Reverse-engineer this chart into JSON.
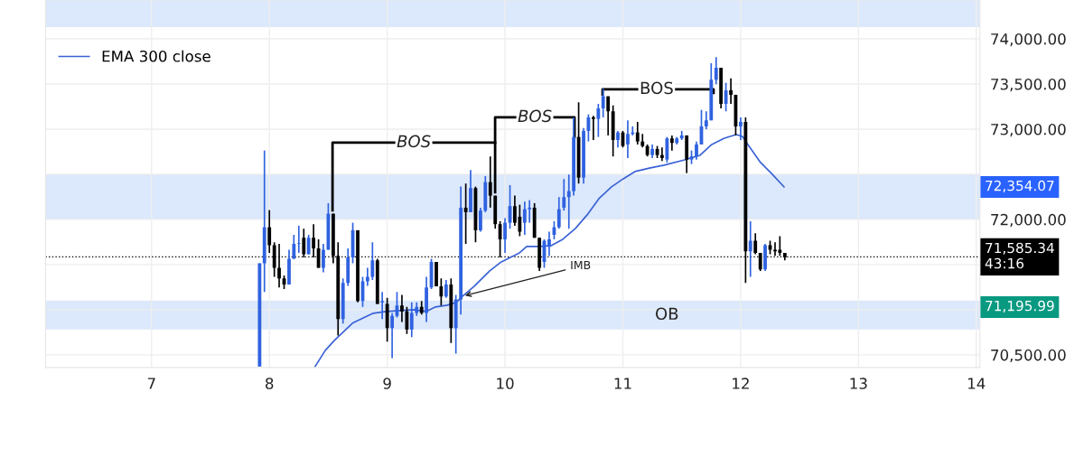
{
  "chart_data": {
    "type": "candlestick",
    "xlim": [
      6.1,
      14.031
    ],
    "xticks": [
      7,
      8,
      9,
      10,
      11,
      12,
      13,
      14
    ],
    "ylim": [
      70360,
      74430
    ],
    "yticks": [
      {
        "value": 70500,
        "label": "70,500.00"
      },
      {
        "value": 71000,
        "label": null
      },
      {
        "value": 71500,
        "label": null
      },
      {
        "value": 72000,
        "label": "72,000.00"
      },
      {
        "value": 72500,
        "label": null
      },
      {
        "value": 73000,
        "label": "73,000.00"
      },
      {
        "value": 73500,
        "label": "73,500.00"
      },
      {
        "value": 74000,
        "label": "74,000.00"
      }
    ],
    "grid": true,
    "legend": "top left",
    "series": [
      {
        "colors": [
          "#2f62e0",
          "#2f62e0",
          "#000000",
          "#000000",
          "#000000",
          "#000000",
          "#2f62e0",
          "#2f62e0",
          "#2f62e0",
          "#000000",
          "#2f62e0",
          "#000000",
          "#000000",
          "#2f62e0",
          "#2f62e0",
          "#000000",
          "#000000",
          "#2f62e0",
          "#2f62e0",
          "#2f62e0",
          "#000000",
          "#2f62e0",
          "#2f62e0",
          "#2f62e0",
          "#000000",
          "#2f62e0",
          "#000000",
          "#2f62e0",
          "#2f62e0",
          "#000000",
          "#000000",
          "#2f62e0",
          "#2f62e0",
          "#000000",
          "#2f62e0",
          "#2f62e0",
          "#000000",
          "#000000",
          "#2f62e0",
          "#000000",
          "#2f62e0",
          "#2f62e0",
          "#000000",
          "#2f62e0",
          "#000000",
          "#2f62e0",
          "#2f62e0",
          "#000000",
          "#000000",
          "#000000",
          "#2f62e0",
          "#2f62e0",
          "#000000",
          "#000000",
          "#2f62e0",
          "#2f62e0",
          "#000000",
          "#000000",
          "#2f62e0",
          "#2f62e0",
          "#2f62e0",
          "#2f62e0",
          "#2f62e0",
          "#2f62e0",
          "#2f62e0",
          "#000000",
          "#2f62e0",
          "#2f62e0",
          "#000000",
          "#2f62e0",
          "#2f62e0",
          "#000000",
          "#000000",
          "#2f62e0",
          "#000000",
          "#2f62e0",
          "#2f62e0",
          "#000000",
          "#000000",
          "#000000",
          "#2f62e0",
          "#000000",
          "#000000",
          "#2f62e0",
          "#000000",
          "#2f62e0",
          "#2f62e0",
          "#000000",
          "#2f62e0",
          "#2f62e0",
          "#2f62e0",
          "#2f62e0",
          "#2f62e0",
          "#2f62e0",
          "#000000",
          "#2f62e0",
          "#000000",
          "#000000",
          "#2f62e0",
          "#000000",
          "#2f62e0",
          "#000000",
          "#000000",
          "#2f62e0",
          "#000000",
          "#000000",
          "#000000",
          "#000000"
        ],
        "x": [
          7.917,
          7.958,
          8.0,
          8.042,
          8.083,
          8.125,
          8.167,
          8.208,
          8.25,
          8.292,
          8.333,
          8.375,
          8.417,
          8.458,
          8.5,
          8.542,
          8.583,
          8.625,
          8.667,
          8.708,
          8.75,
          8.792,
          8.833,
          8.875,
          8.917,
          8.958,
          9.0,
          9.042,
          9.083,
          9.125,
          9.167,
          9.208,
          9.25,
          9.292,
          9.333,
          9.375,
          9.417,
          9.458,
          9.5,
          9.542,
          9.583,
          9.625,
          9.667,
          9.708,
          9.75,
          9.792,
          9.833,
          9.875,
          9.917,
          9.958,
          10.0,
          10.042,
          10.083,
          10.125,
          10.167,
          10.208,
          10.25,
          10.292,
          10.333,
          10.375,
          10.417,
          10.458,
          10.5,
          10.542,
          10.583,
          10.625,
          10.667,
          10.708,
          10.75,
          10.792,
          10.833,
          10.875,
          10.917,
          10.958,
          11.0,
          11.042,
          11.083,
          11.125,
          11.167,
          11.208,
          11.25,
          11.292,
          11.333,
          11.375,
          11.417,
          11.458,
          11.5,
          11.542,
          11.583,
          11.625,
          11.667,
          11.708,
          11.75,
          11.792,
          11.833,
          11.875,
          11.917,
          11.958,
          12.0,
          12.042,
          12.083,
          12.125,
          12.167,
          12.208,
          12.25,
          12.292,
          12.333,
          12.375
        ],
        "ohlc": [
          [
            70370,
            71513,
            70370,
            71513
          ],
          [
            71513,
            72763,
            71197,
            71913
          ],
          [
            71913,
            72103,
            71630,
            71713
          ],
          [
            71713,
            71747,
            71363,
            71463
          ],
          [
            71463,
            71730,
            71247,
            71347
          ],
          [
            71347,
            71380,
            71230,
            71280
          ],
          [
            71280,
            71663,
            71280,
            71563
          ],
          [
            71563,
            71830,
            71563,
            71730
          ],
          [
            71730,
            71930,
            71630,
            71737
          ],
          [
            71797,
            71897,
            71580,
            71613
          ],
          [
            71613,
            71830,
            71613,
            71797
          ],
          [
            71797,
            71947,
            71580,
            71680
          ],
          [
            71680,
            71780,
            71463,
            71463
          ],
          [
            71463,
            71730,
            71413,
            71663
          ],
          [
            71663,
            72180,
            71663,
            72063
          ],
          [
            72063,
            72063,
            71513,
            71597
          ],
          [
            71597,
            71747,
            70713,
            70897
          ],
          [
            70897,
            71347,
            70847,
            71297
          ],
          [
            71297,
            71680,
            71263,
            71580
          ],
          [
            71580,
            71963,
            71513,
            71880
          ],
          [
            71880,
            71880,
            71080,
            71097
          ],
          [
            71097,
            71363,
            71030,
            71313
          ],
          [
            71313,
            71463,
            71263,
            71363
          ],
          [
            71363,
            71747,
            71330,
            71547
          ],
          [
            71547,
            71563,
            71063,
            71063
          ],
          [
            71080,
            71197,
            70897,
            71097
          ],
          [
            71063,
            71130,
            70647,
            70797
          ],
          [
            70797,
            70963,
            70463,
            70930
          ],
          [
            70930,
            71197,
            70913,
            71047
          ],
          [
            71047,
            71163,
            70863,
            70980
          ],
          [
            70980,
            71030,
            70730,
            70780
          ],
          [
            70780,
            71080,
            70697,
            70963
          ],
          [
            70963,
            71080,
            70930,
            71030
          ],
          [
            71030,
            71097,
            70947,
            70963
          ],
          [
            70963,
            71363,
            70863,
            71247
          ],
          [
            71247,
            71563,
            71230,
            71530
          ],
          [
            71530,
            71530,
            71260,
            71260
          ],
          [
            71260,
            71347,
            71047,
            71147
          ],
          [
            71147,
            71330,
            71130,
            71280
          ],
          [
            71280,
            71347,
            70630,
            70797
          ],
          [
            70797,
            71163,
            70513,
            71113
          ],
          [
            71113,
            72363,
            70947,
            72130
          ],
          [
            72130,
            72397,
            71730,
            72080
          ],
          [
            72080,
            72547,
            72080,
            72347
          ],
          [
            72347,
            72363,
            71747,
            71880
          ],
          [
            71880,
            72130,
            71863,
            72097
          ],
          [
            72097,
            72480,
            72080,
            72413
          ],
          [
            72413,
            72697,
            72130,
            72263
          ],
          [
            72263,
            72263,
            71897,
            71947
          ],
          [
            71947,
            71980,
            71580,
            71780
          ],
          [
            71780,
            72013,
            71630,
            71963
          ],
          [
            71963,
            72380,
            71897,
            72147
          ],
          [
            72147,
            72263,
            71930,
            71963
          ],
          [
            72030,
            72163,
            71813,
            71863
          ],
          [
            71963,
            72197,
            71830,
            72113
          ],
          [
            72113,
            72213,
            71963,
            72130
          ],
          [
            72130,
            72180,
            71797,
            71797
          ],
          [
            71797,
            71797,
            71430,
            71463
          ],
          [
            71530,
            71780,
            71463,
            71763
          ],
          [
            71697,
            71863,
            71597,
            71780
          ],
          [
            71830,
            71980,
            71780,
            71913
          ],
          [
            71913,
            72247,
            71897,
            72113
          ],
          [
            72130,
            72447,
            72097,
            72247
          ],
          [
            72247,
            72497,
            71897,
            72313
          ],
          [
            72313,
            73130,
            72263,
            72913
          ],
          [
            72913,
            73297,
            72397,
            72463
          ],
          [
            72463,
            73013,
            72397,
            72980
          ],
          [
            72980,
            73163,
            72863,
            73130
          ],
          [
            73130,
            73147,
            72880,
            73113
          ],
          [
            73113,
            73280,
            72913,
            73230
          ],
          [
            73230,
            73447,
            73130,
            73363
          ],
          [
            73363,
            73363,
            72930,
            73197
          ],
          [
            73197,
            73263,
            72697,
            72880
          ],
          [
            72880,
            72980,
            72797,
            72963
          ],
          [
            72963,
            72980,
            72797,
            72813
          ],
          [
            72830,
            73097,
            72680,
            72947
          ],
          [
            72947,
            73030,
            72930,
            72963
          ],
          [
            72963,
            73080,
            72830,
            72863
          ],
          [
            72863,
            72947,
            72797,
            72813
          ],
          [
            72813,
            72830,
            72697,
            72713
          ],
          [
            72713,
            72830,
            72680,
            72780
          ],
          [
            72780,
            72813,
            72680,
            72713
          ],
          [
            72713,
            72797,
            72647,
            72680
          ],
          [
            72663,
            72913,
            72630,
            72897
          ],
          [
            72897,
            72930,
            72763,
            72847
          ],
          [
            72847,
            72913,
            72830,
            72897
          ],
          [
            72897,
            72980,
            72880,
            72930
          ],
          [
            72930,
            72930,
            72513,
            72663
          ],
          [
            72663,
            72763,
            72613,
            72697
          ],
          [
            72697,
            72863,
            72663,
            72830
          ],
          [
            72830,
            73213,
            72830,
            73030
          ],
          [
            73030,
            73197,
            72997,
            73097
          ],
          [
            73097,
            73730,
            73097,
            73547
          ],
          [
            73547,
            73797,
            73497,
            73680
          ],
          [
            73680,
            73680,
            73230,
            73280
          ],
          [
            73280,
            73513,
            73197,
            73430
          ],
          [
            73430,
            73563,
            73280,
            73380
          ],
          [
            73380,
            73380,
            72930,
            73030
          ],
          [
            73030,
            73130,
            72880,
            73080
          ],
          [
            73080,
            73130,
            71297,
            71647
          ],
          [
            71647,
            71980,
            71363,
            71763
          ],
          [
            71763,
            71847,
            71613,
            71630
          ],
          [
            71630,
            71630,
            71430,
            71447
          ],
          [
            71447,
            71730,
            71430,
            71713
          ],
          [
            71713,
            71763,
            71613,
            71663
          ],
          [
            71663,
            71747,
            71597,
            71647
          ],
          [
            71663,
            71813,
            71597,
            71630
          ],
          [
            71630,
            71630,
            71547,
            71580
          ]
        ]
      },
      {
        "type": "line",
        "name": "EMA 300 close",
        "color": "#3a62d6",
        "x": [
          8.383,
          8.475,
          8.552,
          8.705,
          8.881,
          8.989,
          9.226,
          9.333,
          9.41,
          9.51,
          9.586,
          9.64,
          9.739,
          9.87,
          9.969,
          10.123,
          10.184,
          10.291,
          10.391,
          10.49,
          10.598,
          10.697,
          10.797,
          10.904,
          11.004,
          11.103,
          11.234,
          11.349,
          11.525,
          11.655,
          11.755,
          11.862,
          11.962,
          12.015,
          12.061,
          12.169,
          12.268,
          12.368
        ],
        "values": [
          70360,
          70550,
          70660,
          70850,
          70960,
          70980,
          71000,
          70980,
          71030,
          71050,
          71080,
          71150,
          71260,
          71430,
          71530,
          71630,
          71700,
          71700,
          71710,
          71780,
          71900,
          72050,
          72230,
          72360,
          72450,
          72530,
          72570,
          72600,
          72660,
          72710,
          72830,
          72900,
          72940,
          72920,
          72830,
          72630,
          72500,
          72360
        ]
      },
      {
        "type": "line",
        "color": "#000000",
        "x": [
          8.536,
          8.536,
          9.916
        ],
        "values": [
          72100,
          72850,
          72850
        ]
      },
      {
        "type": "line",
        "color": "#000000",
        "x": [
          9.916,
          9.916,
          10.59,
          10.59
        ],
        "values": [
          72300,
          73130,
          73130,
          72910
        ]
      },
      {
        "type": "line",
        "color": "#000000",
        "x": [
          10.828,
          10.828,
          11.77,
          11.77
        ],
        "values": [
          73380,
          73440,
          73440,
          73400
        ]
      }
    ],
    "bands": [
      {
        "axis": "y",
        "from": 74130,
        "to": 74430,
        "color": "#dce8fb"
      },
      {
        "axis": "y",
        "from": 72000,
        "to": 72500,
        "color": "#dce8fb"
      },
      {
        "axis": "y",
        "from": 70780,
        "to": 71100,
        "label": "OB",
        "color": "#dce8fb"
      }
    ],
    "ref_lines": [
      {
        "axis": "y",
        "value": 71585.34,
        "label": "71,585.34\n43:16",
        "color": "#000000",
        "line_style": "dotted"
      }
    ],
    "annotations": [
      {
        "text": "BOS",
        "x": 9.226,
        "y": 72850
      },
      {
        "text": "BOS",
        "x": 10.253,
        "y": 73130
      },
      {
        "text": "BOS",
        "x": 11.287,
        "y": 73440
      },
      {
        "text": "IMB",
        "x": 9.64,
        "y": 71150
      },
      "72,354.07",
      "71,195.99"
    ]
  }
}
